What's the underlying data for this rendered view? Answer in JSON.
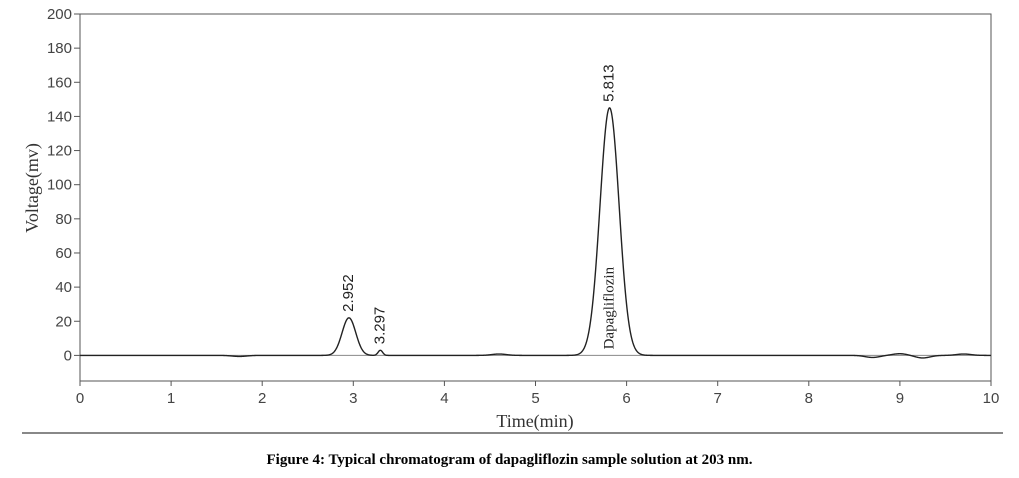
{
  "chart_data": {
    "type": "line",
    "xlabel": "Time(min)",
    "ylabel": "Voltage(mv)",
    "xlim": [
      0,
      10
    ],
    "ylim": [
      -15,
      200
    ],
    "x_ticks": [
      0,
      1,
      2,
      3,
      4,
      5,
      6,
      7,
      8,
      9,
      10
    ],
    "y_ticks": [
      0,
      20,
      40,
      60,
      80,
      100,
      120,
      140,
      160,
      180,
      200
    ],
    "grid": false,
    "legend": "none",
    "line_color": "#222222",
    "peaks": [
      {
        "retention_time": "2.952",
        "x": 2.952,
        "height": 22,
        "width": 0.075
      },
      {
        "retention_time": "3.297",
        "x": 3.297,
        "height": 3,
        "width": 0.025
      },
      {
        "retention_time": "5.813",
        "x": 5.813,
        "height": 145,
        "width": 0.105,
        "name": "Dapagliflozin"
      }
    ],
    "baseline_disturbances": [
      {
        "x": 1.75,
        "y": -0.6
      },
      {
        "x": 4.6,
        "y": 0.8
      },
      {
        "x": 8.7,
        "y": -1.2
      },
      {
        "x": 9.0,
        "y": 1.0
      },
      {
        "x": 9.25,
        "y": -1.5
      },
      {
        "x": 9.7,
        "y": 0.8
      }
    ]
  },
  "caption": "Figure 4: Typical chromatogram of dapagliflozin sample solution at 203 nm."
}
